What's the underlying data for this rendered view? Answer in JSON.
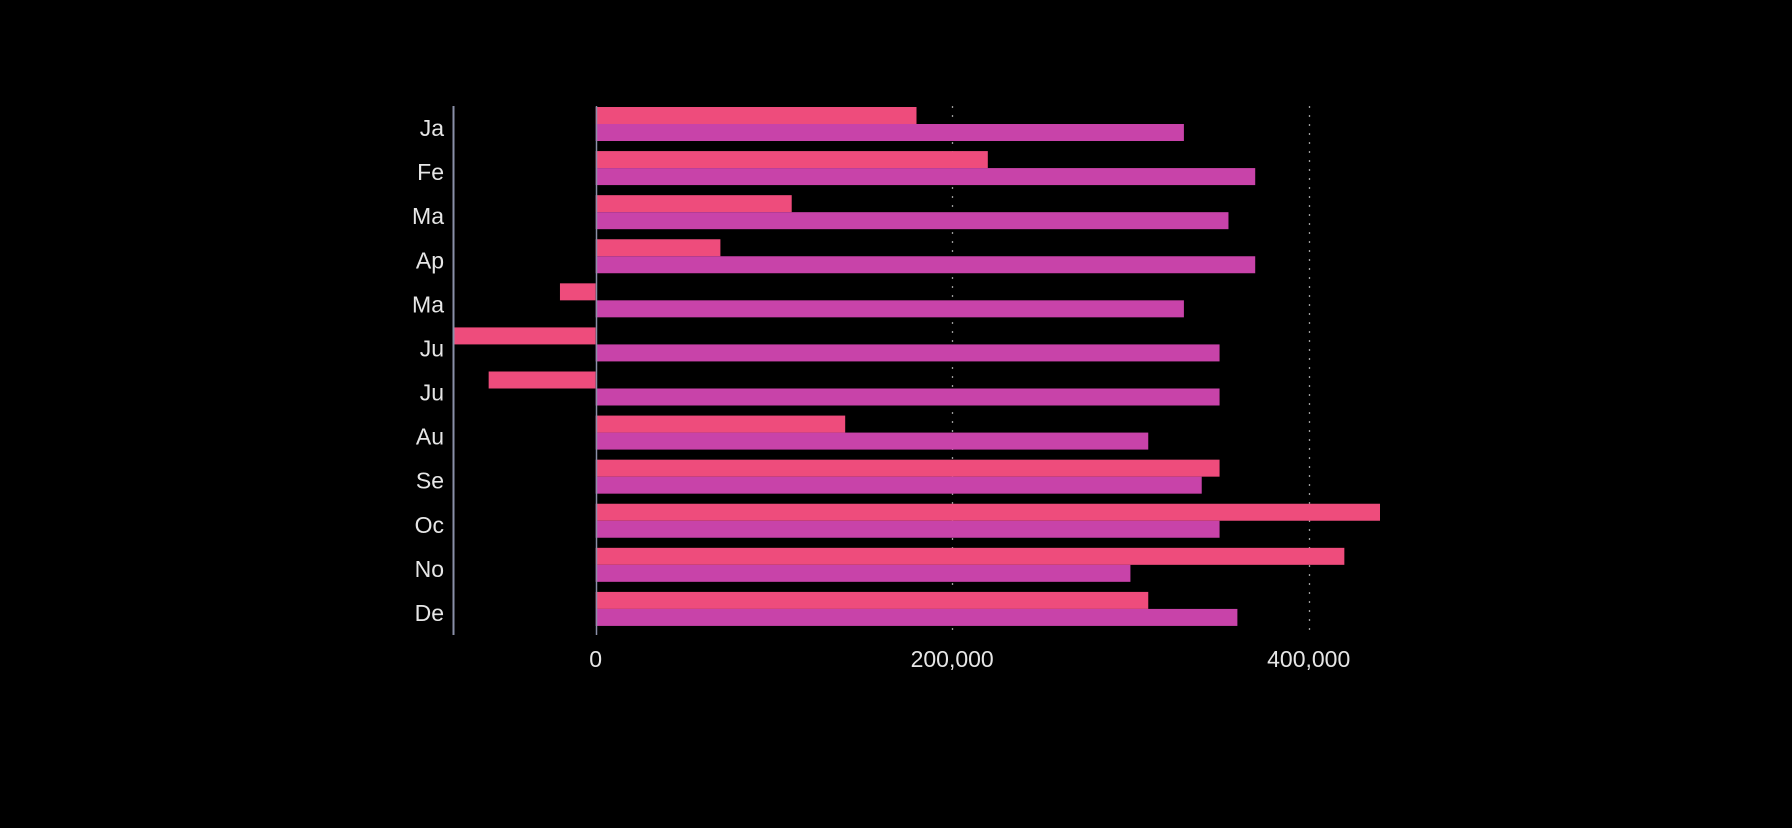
{
  "chart_data": {
    "type": "bar",
    "orientation": "horizontal",
    "title": "",
    "xlabel": "",
    "ylabel": "",
    "categories": [
      "Ja",
      "Fe",
      "Ma",
      "Ap",
      "Ma",
      "Ju",
      "Ju",
      "Au",
      "Se",
      "Oc",
      "No",
      "De"
    ],
    "series": [
      {
        "color": "#ee4c7c",
        "values": [
          180000,
          220000,
          110000,
          70000,
          -20000,
          -80000,
          -60000,
          140000,
          350000,
          440000,
          420000,
          310000
        ]
      },
      {
        "color": "#c843a9",
        "values": [
          330000,
          370000,
          355000,
          370000,
          330000,
          350000,
          350000,
          310000,
          340000,
          350000,
          300000,
          360000
        ]
      }
    ],
    "xlim": [
      -80000,
      440000
    ],
    "xticks": [
      0,
      200000,
      400000
    ],
    "xtick_labels": [
      "0",
      "200,000",
      "400,000"
    ],
    "grid": "vertical dotted",
    "legend": "none",
    "background": "#000000"
  }
}
